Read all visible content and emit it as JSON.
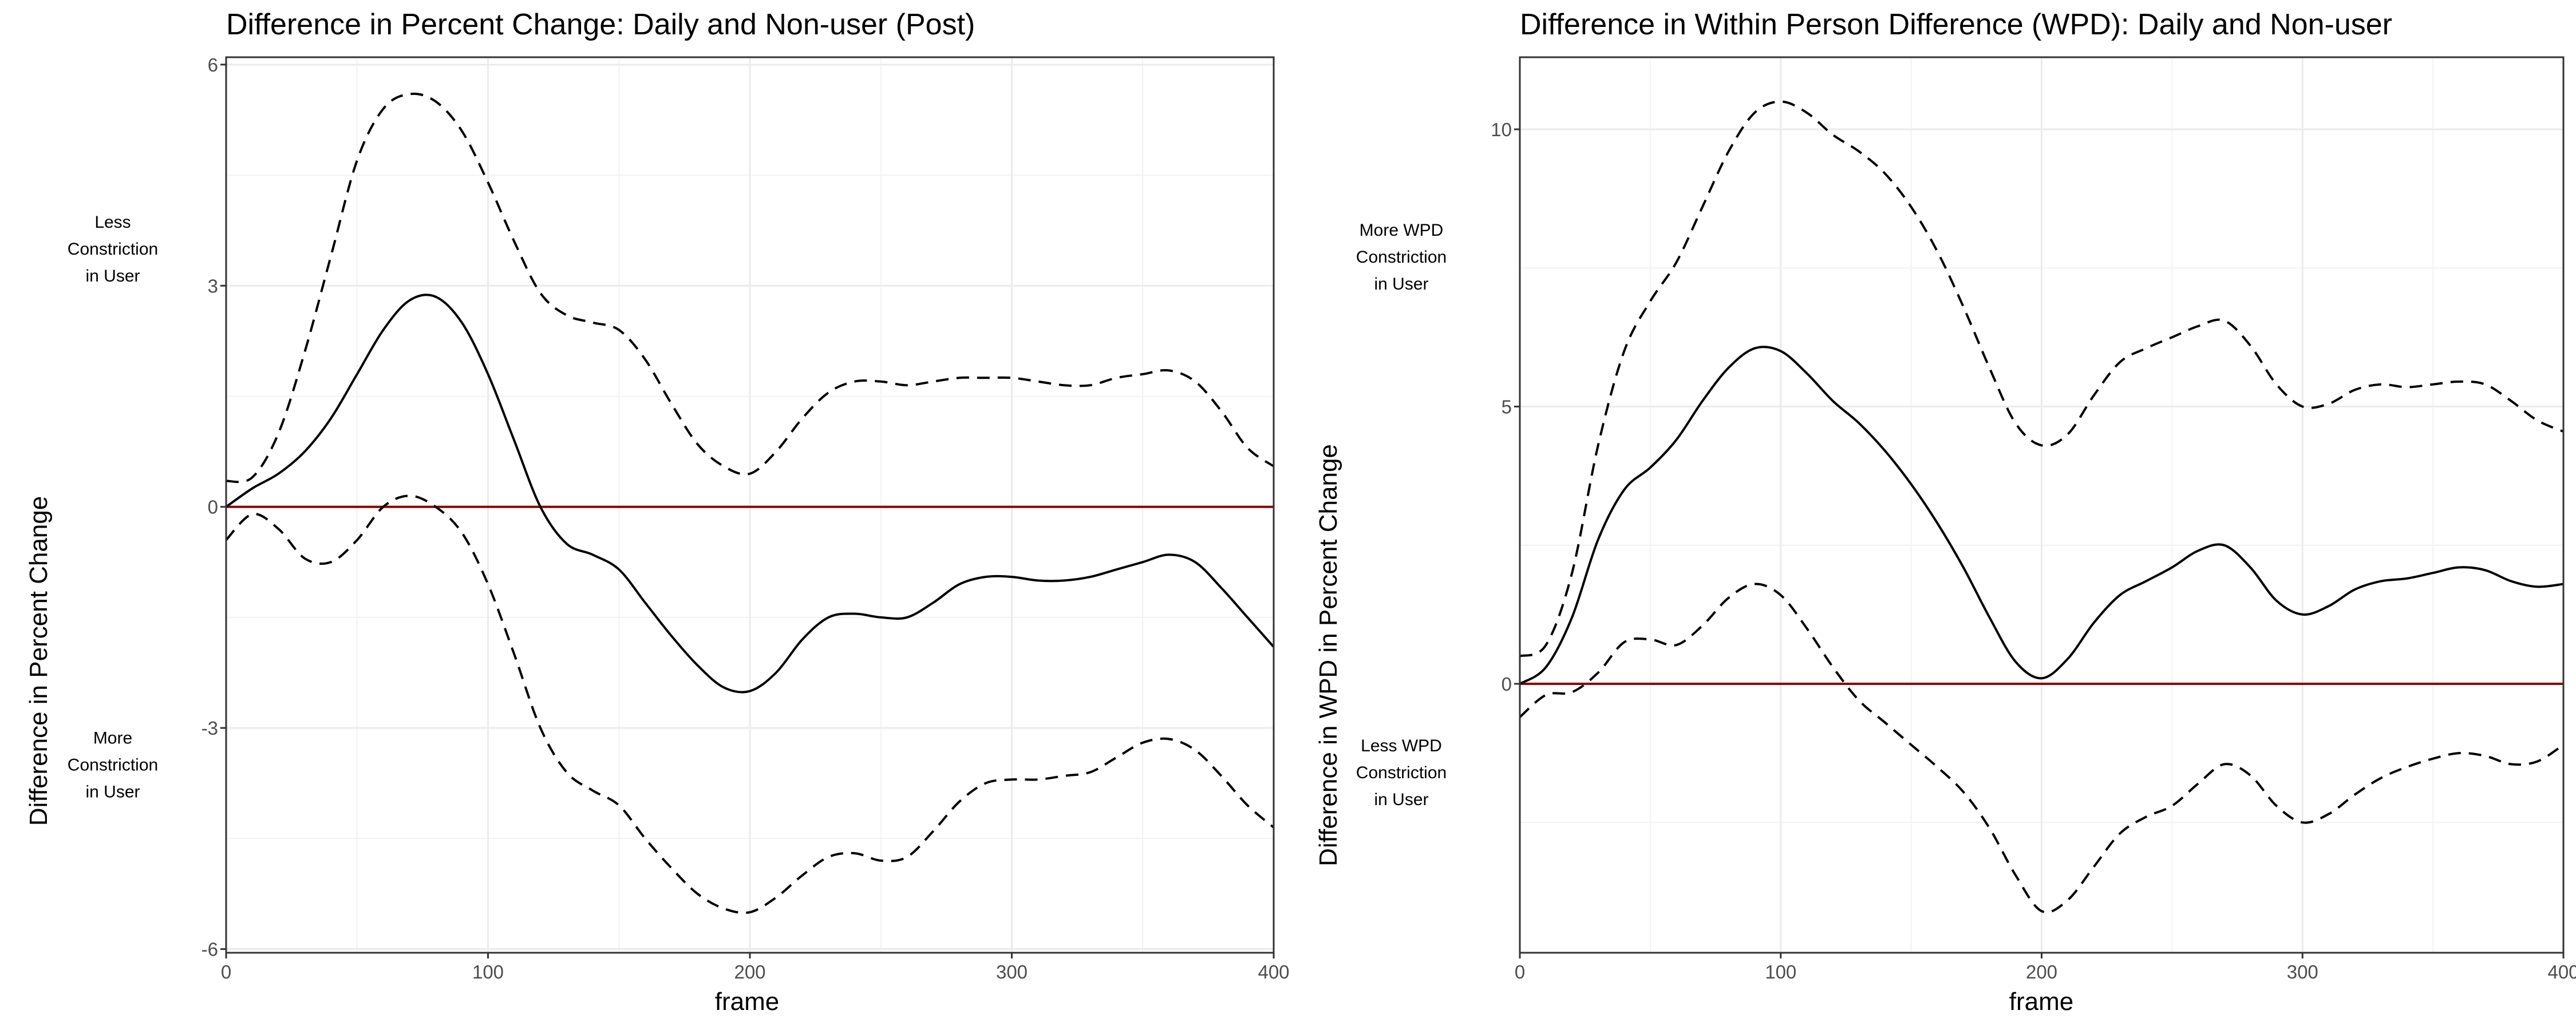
{
  "chart_data": [
    {
      "type": "line",
      "title": "Difference in Percent Change: Daily and Non-user (Post)",
      "xlabel": "frame",
      "ylabel": "Difference in Percent Change",
      "xlim": [
        0,
        400
      ],
      "ylim": [
        -6.05,
        6.1
      ],
      "x_ticks": [
        0,
        100,
        200,
        300,
        400
      ],
      "x_tick_labels": [
        "0",
        "100",
        "200",
        "300",
        "400"
      ],
      "y_ticks": [
        6,
        3,
        0,
        -3,
        -6
      ],
      "y_tick_labels": [
        "6",
        "3",
        "0",
        "-3",
        "-6"
      ],
      "grid": true,
      "reference_line": {
        "y": 0,
        "color": "#8b0000"
      },
      "annotations": [
        {
          "lines": [
            "Less",
            "Constriction",
            "in User"
          ],
          "y": 3.5
        },
        {
          "lines": [
            "More",
            "Constriction",
            "in User"
          ],
          "y": -3.5
        }
      ],
      "series": [
        {
          "style": "solid",
          "x": [
            0,
            10,
            20,
            30,
            40,
            50,
            60,
            70,
            80,
            90,
            100,
            110,
            120,
            130,
            140,
            150,
            160,
            170,
            180,
            190,
            200,
            210,
            220,
            230,
            240,
            250,
            260,
            270,
            280,
            290,
            300,
            310,
            320,
            330,
            340,
            350,
            360,
            370,
            380,
            390,
            400
          ],
          "y": [
            0.0,
            0.25,
            0.45,
            0.75,
            1.2,
            1.8,
            2.4,
            2.8,
            2.85,
            2.5,
            1.8,
            0.9,
            0.0,
            -0.5,
            -0.65,
            -0.85,
            -1.3,
            -1.75,
            -2.15,
            -2.45,
            -2.5,
            -2.25,
            -1.8,
            -1.5,
            -1.45,
            -1.5,
            -1.5,
            -1.3,
            -1.05,
            -0.95,
            -0.95,
            -1.0,
            -1.0,
            -0.95,
            -0.85,
            -0.75,
            -0.65,
            -0.75,
            -1.1,
            -1.5,
            -1.9
          ]
        },
        {
          "style": "dashed",
          "x": [
            0,
            10,
            20,
            30,
            40,
            50,
            60,
            70,
            80,
            90,
            100,
            110,
            120,
            130,
            140,
            150,
            160,
            170,
            180,
            190,
            200,
            210,
            220,
            230,
            240,
            250,
            260,
            270,
            280,
            290,
            300,
            310,
            320,
            330,
            340,
            350,
            360,
            370,
            380,
            390,
            400
          ],
          "y": [
            0.35,
            0.4,
            1.0,
            2.1,
            3.4,
            4.7,
            5.4,
            5.6,
            5.5,
            5.1,
            4.4,
            3.6,
            2.9,
            2.6,
            2.5,
            2.4,
            2.0,
            1.4,
            0.85,
            0.55,
            0.45,
            0.75,
            1.2,
            1.55,
            1.7,
            1.7,
            1.65,
            1.7,
            1.75,
            1.75,
            1.75,
            1.7,
            1.65,
            1.65,
            1.75,
            1.8,
            1.85,
            1.7,
            1.3,
            0.8,
            0.55
          ]
        },
        {
          "style": "dashed",
          "x": [
            0,
            10,
            20,
            30,
            40,
            50,
            60,
            70,
            80,
            90,
            100,
            110,
            120,
            130,
            140,
            150,
            160,
            170,
            180,
            190,
            200,
            210,
            220,
            230,
            240,
            250,
            260,
            270,
            280,
            290,
            300,
            310,
            320,
            330,
            340,
            350,
            360,
            370,
            380,
            390,
            400
          ],
          "y": [
            -0.45,
            -0.1,
            -0.3,
            -0.7,
            -0.75,
            -0.45,
            0.0,
            0.15,
            0.0,
            -0.35,
            -1.05,
            -2.0,
            -3.0,
            -3.6,
            -3.85,
            -4.05,
            -4.5,
            -4.9,
            -5.25,
            -5.45,
            -5.5,
            -5.3,
            -5.0,
            -4.75,
            -4.7,
            -4.8,
            -4.75,
            -4.4,
            -4.0,
            -3.75,
            -3.7,
            -3.7,
            -3.65,
            -3.6,
            -3.4,
            -3.2,
            -3.15,
            -3.3,
            -3.65,
            -4.05,
            -4.35
          ]
        }
      ]
    },
    {
      "type": "line",
      "title": "Difference in Within Person Difference (WPD): Daily and Non-user",
      "xlabel": "frame",
      "ylabel": "Difference in WPD in Percent Change",
      "xlim": [
        0,
        400
      ],
      "ylim": [
        -4.85,
        11.3
      ],
      "x_ticks": [
        0,
        100,
        200,
        300,
        400
      ],
      "x_tick_labels": [
        "0",
        "100",
        "200",
        "300",
        "400"
      ],
      "y_ticks": [
        10,
        5,
        0
      ],
      "y_tick_labels": [
        "10",
        "5",
        "0"
      ],
      "grid": true,
      "reference_line": {
        "y": 0,
        "color": "#8b0000"
      },
      "annotations": [
        {
          "lines": [
            "More WPD",
            "Constriction",
            "in User"
          ],
          "y": 7.7
        },
        {
          "lines": [
            "Less WPD",
            "Constriction",
            "in User"
          ],
          "y": -1.6
        }
      ],
      "series": [
        {
          "style": "solid",
          "x": [
            0,
            10,
            20,
            30,
            40,
            50,
            60,
            70,
            80,
            90,
            100,
            110,
            120,
            130,
            140,
            150,
            160,
            170,
            180,
            190,
            200,
            210,
            220,
            230,
            240,
            250,
            260,
            270,
            280,
            290,
            300,
            310,
            320,
            330,
            340,
            350,
            360,
            370,
            380,
            390,
            400
          ],
          "y": [
            0.0,
            0.3,
            1.2,
            2.6,
            3.5,
            3.9,
            4.4,
            5.1,
            5.7,
            6.05,
            6.0,
            5.6,
            5.1,
            4.7,
            4.2,
            3.6,
            2.9,
            2.1,
            1.2,
            0.4,
            0.1,
            0.45,
            1.1,
            1.6,
            1.85,
            2.1,
            2.4,
            2.5,
            2.1,
            1.5,
            1.25,
            1.4,
            1.7,
            1.85,
            1.9,
            2.0,
            2.1,
            2.05,
            1.85,
            1.75,
            1.8
          ]
        },
        {
          "style": "dashed",
          "x": [
            0,
            10,
            20,
            30,
            40,
            50,
            60,
            70,
            80,
            90,
            100,
            110,
            120,
            130,
            140,
            150,
            160,
            170,
            180,
            190,
            200,
            210,
            220,
            230,
            240,
            250,
            260,
            270,
            280,
            290,
            300,
            310,
            320,
            330,
            340,
            350,
            360,
            370,
            380,
            390,
            400
          ],
          "y": [
            0.5,
            0.7,
            2.0,
            4.3,
            6.0,
            6.9,
            7.6,
            8.6,
            9.6,
            10.3,
            10.5,
            10.3,
            9.9,
            9.6,
            9.2,
            8.6,
            7.8,
            6.8,
            5.7,
            4.7,
            4.3,
            4.5,
            5.2,
            5.8,
            6.05,
            6.25,
            6.45,
            6.55,
            6.1,
            5.4,
            5.0,
            5.05,
            5.3,
            5.4,
            5.35,
            5.4,
            5.45,
            5.4,
            5.1,
            4.75,
            4.55
          ]
        },
        {
          "style": "dashed",
          "x": [
            0,
            10,
            20,
            30,
            40,
            50,
            60,
            70,
            80,
            90,
            100,
            110,
            120,
            130,
            140,
            150,
            160,
            170,
            180,
            190,
            200,
            210,
            220,
            230,
            240,
            250,
            260,
            270,
            280,
            290,
            300,
            310,
            320,
            330,
            340,
            350,
            360,
            370,
            380,
            390,
            400
          ],
          "y": [
            -0.6,
            -0.2,
            -0.15,
            0.2,
            0.75,
            0.8,
            0.7,
            1.05,
            1.55,
            1.8,
            1.6,
            1.0,
            0.3,
            -0.3,
            -0.7,
            -1.1,
            -1.5,
            -1.95,
            -2.6,
            -3.45,
            -4.1,
            -3.9,
            -3.3,
            -2.7,
            -2.4,
            -2.2,
            -1.8,
            -1.45,
            -1.65,
            -2.2,
            -2.5,
            -2.35,
            -2.0,
            -1.7,
            -1.5,
            -1.35,
            -1.25,
            -1.3,
            -1.45,
            -1.4,
            -1.1
          ]
        }
      ]
    }
  ]
}
